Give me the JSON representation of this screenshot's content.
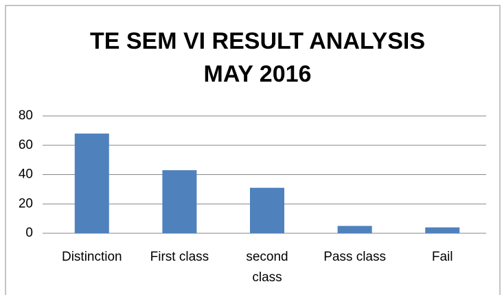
{
  "chart_data": {
    "type": "bar",
    "title": [
      "TE SEM VI RESULT ANALYSIS",
      "MAY 2016"
    ],
    "categories": [
      "Distinction",
      "First class",
      "second class",
      "Pass class",
      "Fail"
    ],
    "values": [
      68,
      43,
      31,
      5,
      4
    ],
    "color": "#4f81bd",
    "ylim": [
      0,
      80
    ],
    "yticks": [
      0,
      20,
      40,
      60,
      80
    ],
    "grid": true
  }
}
